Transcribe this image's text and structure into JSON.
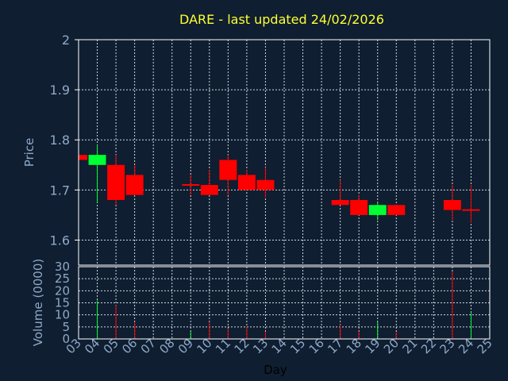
{
  "chart_data": [
    {
      "type": "candlestick",
      "title": "DARE - last updated 24/02/2026",
      "ylabel": "Price",
      "ylim": [
        1.55,
        2.0
      ],
      "yticks": [
        "1.6",
        "1.7",
        "1.8",
        "1.9",
        "2"
      ],
      "xlim": [
        3,
        25
      ],
      "grid": true,
      "up_color": "#00ff33",
      "down_color": "#ff0000",
      "candles": [
        {
          "day": 3,
          "open": 1.77,
          "close": 1.76,
          "high": 1.77,
          "low": 1.76
        },
        {
          "day": 4,
          "open": 1.75,
          "close": 1.77,
          "high": 1.79,
          "low": 1.675
        },
        {
          "day": 5,
          "open": 1.75,
          "close": 1.68,
          "high": 1.77,
          "low": 1.67
        },
        {
          "day": 6,
          "open": 1.73,
          "close": 1.69,
          "high": 1.75,
          "low": 1.69
        },
        {
          "day": 9,
          "open": 1.71,
          "close": 1.71,
          "high": 1.73,
          "low": 1.69
        },
        {
          "day": 10,
          "open": 1.71,
          "close": 1.69,
          "high": 1.74,
          "low": 1.69
        },
        {
          "day": 11,
          "open": 1.76,
          "close": 1.72,
          "high": 1.77,
          "low": 1.69
        },
        {
          "day": 12,
          "open": 1.73,
          "close": 1.7,
          "high": 1.74,
          "low": 1.7
        },
        {
          "day": 13,
          "open": 1.72,
          "close": 1.7,
          "high": 1.745,
          "low": 1.685
        },
        {
          "day": 17,
          "open": 1.68,
          "close": 1.67,
          "high": 1.72,
          "low": 1.67
        },
        {
          "day": 18,
          "open": 1.68,
          "close": 1.65,
          "high": 1.69,
          "low": 1.65
        },
        {
          "day": 19,
          "open": 1.65,
          "close": 1.67,
          "high": 1.675,
          "low": 1.64
        },
        {
          "day": 20,
          "open": 1.67,
          "close": 1.65,
          "high": 1.67,
          "low": 1.65
        },
        {
          "day": 23,
          "open": 1.68,
          "close": 1.66,
          "high": 1.71,
          "low": 1.64
        },
        {
          "day": 24,
          "open": 1.66,
          "close": 1.66,
          "high": 1.71,
          "low": 1.635
        }
      ]
    },
    {
      "type": "bar",
      "ylabel": "Volume (0000)",
      "xlabel": "Day",
      "ylim": [
        0,
        30
      ],
      "yticks": [
        "0",
        "5",
        "10",
        "15",
        "20",
        "25",
        "30"
      ],
      "xlim": [
        3,
        25
      ],
      "xticks": [
        "03",
        "04",
        "05",
        "06",
        "07",
        "08",
        "09",
        "10",
        "11",
        "12",
        "13",
        "14",
        "15",
        "16",
        "17",
        "18",
        "19",
        "20",
        "21",
        "22",
        "23",
        "24",
        "25"
      ],
      "grid": true,
      "bars": [
        {
          "day": 3,
          "value": 1,
          "color": "#ff0000"
        },
        {
          "day": 4,
          "value": 16,
          "color": "#00ff33"
        },
        {
          "day": 5,
          "value": 14,
          "color": "#ff0000"
        },
        {
          "day": 6,
          "value": 7,
          "color": "#ff0000"
        },
        {
          "day": 9,
          "value": 3,
          "color": "#00ff33"
        },
        {
          "day": 10,
          "value": 7,
          "color": "#ff0000"
        },
        {
          "day": 11,
          "value": 4,
          "color": "#ff0000"
        },
        {
          "day": 12,
          "value": 5,
          "color": "#ff0000"
        },
        {
          "day": 13,
          "value": 3,
          "color": "#ff0000"
        },
        {
          "day": 17,
          "value": 6,
          "color": "#ff0000"
        },
        {
          "day": 18,
          "value": 3,
          "color": "#ff0000"
        },
        {
          "day": 19,
          "value": 7,
          "color": "#00ff33"
        },
        {
          "day": 20,
          "value": 3,
          "color": "#ff0000"
        },
        {
          "day": 23,
          "value": 28,
          "color": "#ff0000"
        },
        {
          "day": 24,
          "value": 11,
          "color": "#00ff33"
        }
      ]
    }
  ]
}
